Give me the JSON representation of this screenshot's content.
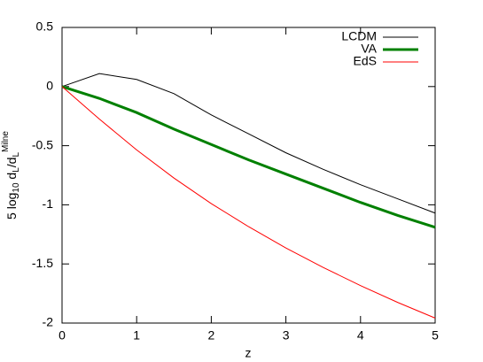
{
  "chart_data": {
    "type": "line",
    "xlabel": "z",
    "ylabel": [
      "5 log",
      "10",
      " d",
      "L",
      "/d",
      "L",
      "Milne"
    ],
    "x": [
      0,
      0.5,
      1,
      1.5,
      2,
      2.5,
      3,
      3.5,
      4,
      4.5,
      5
    ],
    "series": [
      {
        "name": "LCDM",
        "color": "#000000",
        "width": 1,
        "values": [
          0,
          0.11,
          0.06,
          -0.06,
          -0.24,
          -0.4,
          -0.56,
          -0.7,
          -0.83,
          -0.95,
          -1.07
        ]
      },
      {
        "name": "VA",
        "color": "#008000",
        "width": 3,
        "values": [
          0,
          -0.1,
          -0.22,
          -0.36,
          -0.49,
          -0.62,
          -0.74,
          -0.86,
          -0.98,
          -1.09,
          -1.19
        ]
      },
      {
        "name": "EdS",
        "color": "#ff0000",
        "width": 1,
        "values": [
          0,
          -0.275,
          -0.536,
          -0.774,
          -0.99,
          -1.185,
          -1.365,
          -1.53,
          -1.683,
          -1.826,
          -1.958
        ]
      }
    ],
    "xlim": [
      0,
      5
    ],
    "ylim": [
      -2,
      0.5
    ],
    "xticks": [
      0,
      1,
      2,
      3,
      4,
      5
    ],
    "yticks": [
      -2,
      -1.5,
      -1,
      -0.5,
      0,
      0.5
    ],
    "legend": "top-right"
  }
}
